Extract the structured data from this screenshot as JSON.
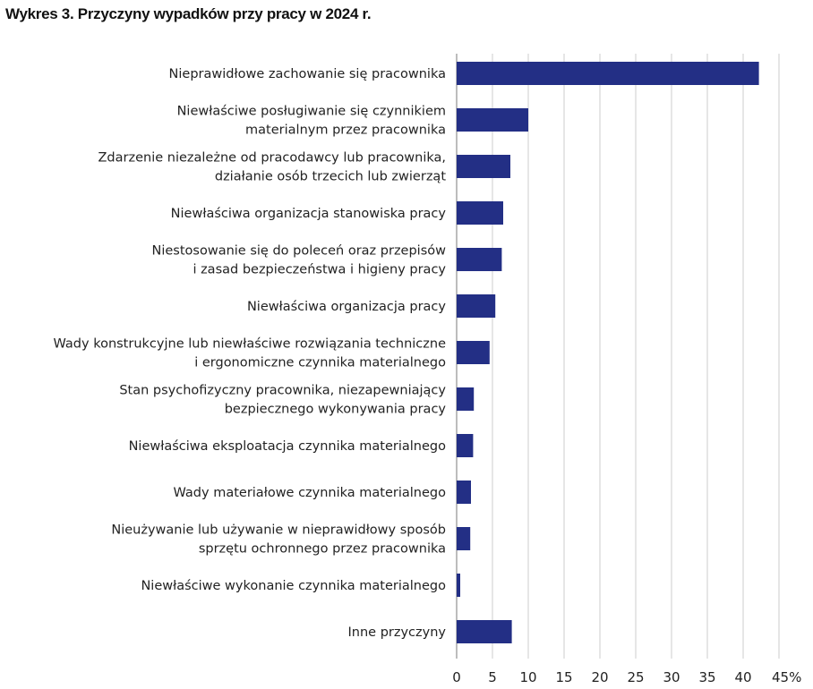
{
  "chart_data": {
    "type": "bar",
    "orientation": "horizontal",
    "title": "Wykres 3. Przyczyny wypadków przy pracy w 2024 r.",
    "xlabel": "",
    "ylabel": "",
    "unit": "%",
    "xlim": [
      0,
      45
    ],
    "xticks": [
      "0",
      "5",
      "10",
      "15",
      "20",
      "25",
      "30",
      "35",
      "40",
      "45%"
    ],
    "grid": "vertical",
    "bar_color": "#232F85",
    "categories": [
      [
        "Nieprawidłowe zachowanie się pracownika"
      ],
      [
        "Niewłaściwe posługiwanie się czynnikiem",
        "materialnym przez pracownika"
      ],
      [
        "Zdarzenie niezależne od pracodawcy lub pracownika,",
        "działanie osób trzecich lub zwierząt"
      ],
      [
        "Niewłaściwa organizacja stanowiska pracy"
      ],
      [
        "Niestosowanie się do poleceń oraz przepisów",
        "i zasad bezpieczeństwa i higieny pracy"
      ],
      [
        "Niewłaściwa organizacja pracy"
      ],
      [
        "Wady konstrukcyjne lub niewłaściwe rozwiązania techniczne",
        "i ergonomiczne czynnika materialnego"
      ],
      [
        "Stan psychofizyczny pracownika, niezapewniający",
        "bezpiecznego wykonywania pracy"
      ],
      [
        "Niewłaściwa eksploatacja czynnika materialnego"
      ],
      [
        "Wady materiałowe czynnika materialnego"
      ],
      [
        "Nieużywanie lub używanie w nieprawidłowy sposób",
        "sprzętu ochronnego przez pracownika"
      ],
      [
        "Niewłaściwe wykonanie czynnika materialnego"
      ],
      [
        "Inne przyczyny"
      ]
    ],
    "values": [
      42.2,
      10.0,
      7.5,
      6.5,
      6.3,
      5.4,
      4.6,
      2.4,
      2.3,
      2.0,
      1.9,
      0.5,
      7.7
    ]
  }
}
